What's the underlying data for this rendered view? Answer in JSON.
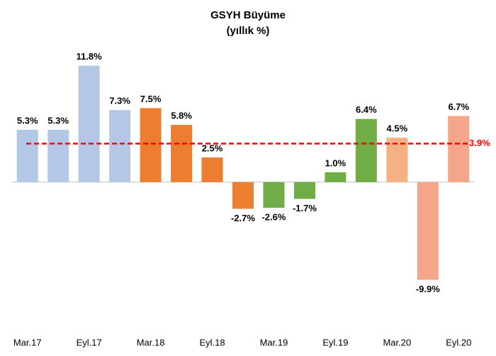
{
  "chart_data": {
    "type": "bar",
    "title": "GSYH Büyüme",
    "subtitle": "(yıllık %)",
    "categories": [
      "Mar.17",
      null,
      "Eyl.17",
      null,
      "Mar.18",
      null,
      "Eyl.18",
      null,
      "Mar.19",
      null,
      "Eyl.19",
      null,
      "Mar.20",
      null,
      "Eyl.20"
    ],
    "values": [
      5.3,
      5.3,
      11.8,
      7.3,
      7.5,
      5.8,
      2.5,
      -2.7,
      -2.6,
      -1.7,
      1.0,
      6.4,
      4.5,
      -9.9,
      6.7
    ],
    "value_labels": [
      "5.3%",
      "5.3%",
      "11.8%",
      "7.3%",
      "7.5%",
      "5.8%",
      "2.5%",
      "-2.7%",
      "-2.6%",
      "-1.7%",
      "1.0%",
      "6.4%",
      "4.5%",
      "-9.9%",
      "6.7%"
    ],
    "colors": [
      "#b4c7e7",
      "#b4c7e7",
      "#b4c7e7",
      "#b4c7e7",
      "#ed7d31",
      "#ed7d31",
      "#ed7d31",
      "#ed7d31",
      "#70ad47",
      "#70ad47",
      "#70ad47",
      "#70ad47",
      "#f4b183",
      "#f4a58a",
      "#f4a58a"
    ],
    "ylim": [
      -14,
      14
    ],
    "reference_line": {
      "value": 3.9,
      "label": "3.9%",
      "color": "#ff0000"
    }
  }
}
